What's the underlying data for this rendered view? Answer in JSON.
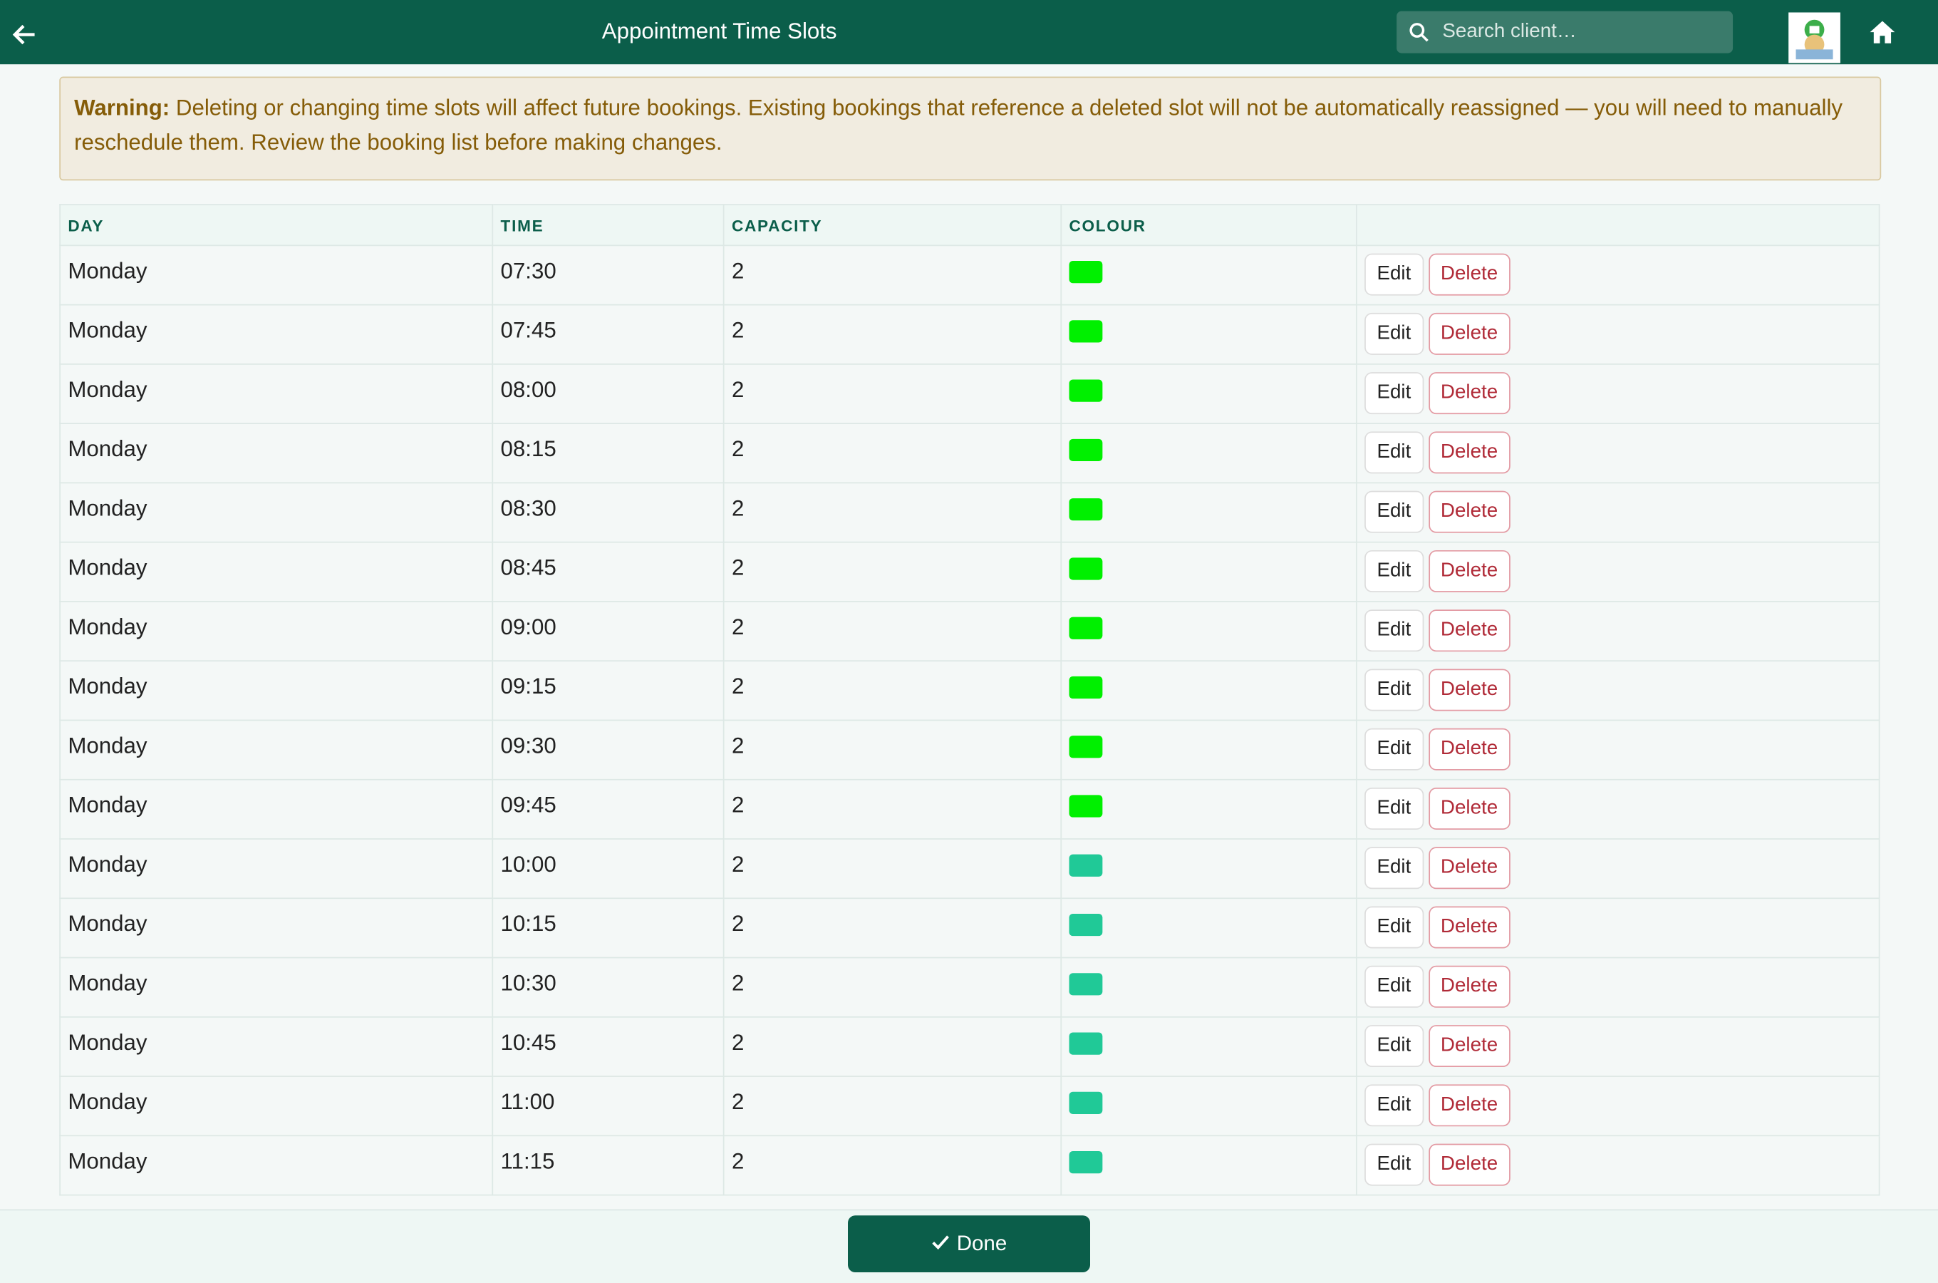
{
  "header": {
    "title": "Appointment Time Slots",
    "search_placeholder": "Search client…"
  },
  "warning": {
    "label": "Warning:",
    "text": "Deleting or changing time slots will affect future bookings. Existing bookings that reference a deleted slot will not be automatically reassigned — you will need to manually reschedule them. Review the booking list before making changes."
  },
  "table": {
    "columns": [
      "DAY",
      "TIME",
      "CAPACITY",
      "COLOUR"
    ],
    "rows": [
      {
        "day": "Monday",
        "time": "07:30",
        "capacity": "2",
        "colour": "#00f000"
      },
      {
        "day": "Monday",
        "time": "07:45",
        "capacity": "2",
        "colour": "#00f000"
      },
      {
        "day": "Monday",
        "time": "08:00",
        "capacity": "2",
        "colour": "#00f000"
      },
      {
        "day": "Monday",
        "time": "08:15",
        "capacity": "2",
        "colour": "#00f000"
      },
      {
        "day": "Monday",
        "time": "08:30",
        "capacity": "2",
        "colour": "#00f000"
      },
      {
        "day": "Monday",
        "time": "08:45",
        "capacity": "2",
        "colour": "#00f000"
      },
      {
        "day": "Monday",
        "time": "09:00",
        "capacity": "2",
        "colour": "#00f000"
      },
      {
        "day": "Monday",
        "time": "09:15",
        "capacity": "2",
        "colour": "#00f000"
      },
      {
        "day": "Monday",
        "time": "09:30",
        "capacity": "2",
        "colour": "#00f000"
      },
      {
        "day": "Monday",
        "time": "09:45",
        "capacity": "2",
        "colour": "#00f000"
      },
      {
        "day": "Monday",
        "time": "10:00",
        "capacity": "2",
        "colour": "#20c997"
      },
      {
        "day": "Monday",
        "time": "10:15",
        "capacity": "2",
        "colour": "#20c997"
      },
      {
        "day": "Monday",
        "time": "10:30",
        "capacity": "2",
        "colour": "#20c997"
      },
      {
        "day": "Monday",
        "time": "10:45",
        "capacity": "2",
        "colour": "#20c997"
      },
      {
        "day": "Monday",
        "time": "11:00",
        "capacity": "2",
        "colour": "#20c997"
      },
      {
        "day": "Monday",
        "time": "11:15",
        "capacity": "2",
        "colour": "#20c997"
      }
    ],
    "actions": {
      "edit": "Edit",
      "delete": "Delete"
    }
  },
  "footer": {
    "done": "Done"
  }
}
